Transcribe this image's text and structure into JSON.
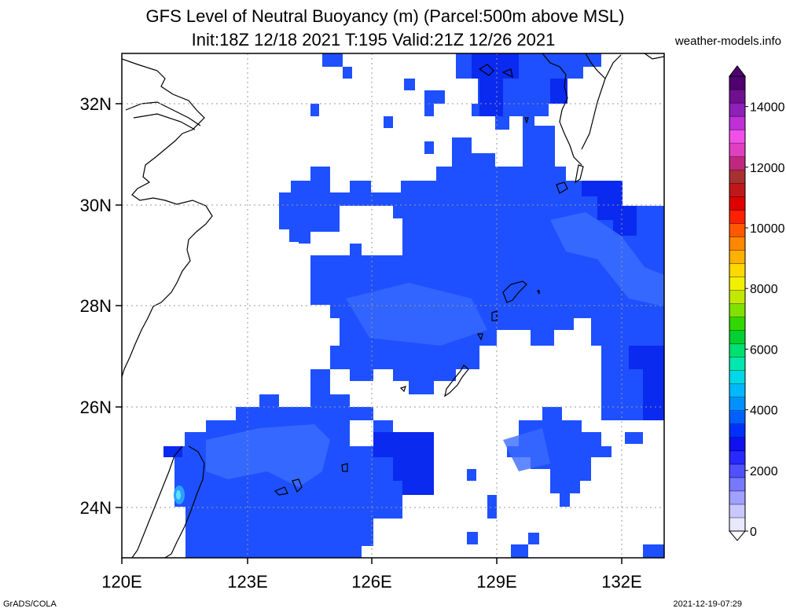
{
  "title_line1": "GFS Level of Neutral Buoyancy (m) (Parcel:500m above MSL)",
  "title_line2": "Init:18Z 12/18 2021 T:195 Valid:21Z 12/26 2021",
  "site": "weather-models.info",
  "footer_left": "GrADS/COLA",
  "footer_right": "2021-12-19-07:29",
  "map": {
    "lon_labels": [
      "120E",
      "123E",
      "126E",
      "129E",
      "132E"
    ],
    "lat_labels": [
      "32N",
      "30N",
      "28N",
      "26N",
      "24N"
    ]
  },
  "colorbar": {
    "labels": [
      "0",
      "2000",
      "4000",
      "6000",
      "8000",
      "10000",
      "12000",
      "14000"
    ],
    "colors": [
      "#e8e8ff",
      "#c8c8ff",
      "#a0a0ff",
      "#7878ff",
      "#5050ff",
      "#2828ff",
      "#1010f0",
      "#0030ff",
      "#0060ff",
      "#0090ff",
      "#00b8ff",
      "#00d8e8",
      "#00e8b0",
      "#00e070",
      "#00d030",
      "#30d800",
      "#80e000",
      "#c0e800",
      "#f0f000",
      "#ffd800",
      "#ffb000",
      "#ff8800",
      "#ff5800",
      "#ff2000",
      "#e00000",
      "#c01818",
      "#a83030",
      "#c02880",
      "#e040c0",
      "#f050e8",
      "#c030d8",
      "#9020b8",
      "#701090",
      "#500070"
    ],
    "colors_meaning": "low to high"
  },
  "colors": {
    "field_main": "#1e50ff",
    "field_light": "#3a6cff",
    "field_dark": "#0a2af0",
    "teal_spot": "#2aa0ff"
  }
}
